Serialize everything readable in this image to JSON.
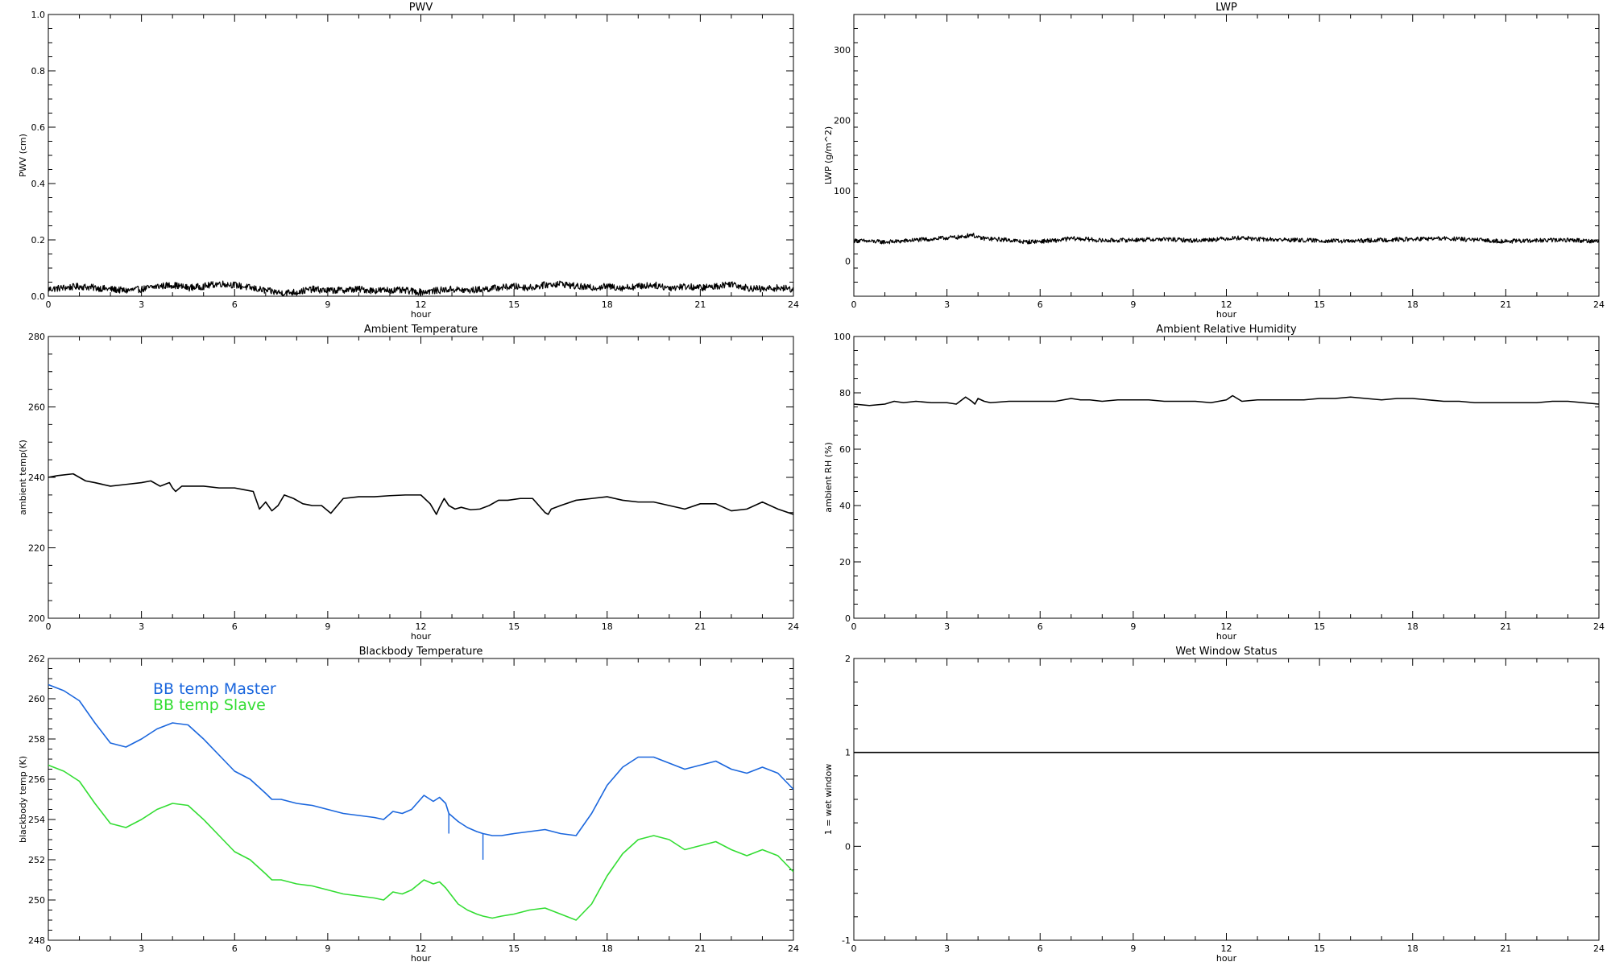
{
  "chart_data": [
    {
      "id": "pwv",
      "type": "line",
      "title": "PWV",
      "xlabel": "hour",
      "ylabel": "PWV (cm)",
      "xlim": [
        0,
        24
      ],
      "ylim": [
        0,
        1
      ],
      "xticks": [
        "0",
        "3",
        "6",
        "9",
        "12",
        "15",
        "18",
        "21",
        "24"
      ],
      "yticks": [
        "0.0",
        "0.2",
        "0.4",
        "0.6",
        "0.8",
        "1.0"
      ],
      "grid": false,
      "series": [
        {
          "color": "#000000",
          "noise": 0.012,
          "x": [
            0,
            0.5,
            1,
            1.5,
            2,
            2.5,
            3,
            3.5,
            4,
            4.5,
            5,
            5.5,
            6,
            6.5,
            7,
            7.5,
            8,
            8.5,
            9,
            9.5,
            10,
            10.5,
            11,
            11.5,
            12,
            12.5,
            13,
            13.5,
            14,
            14.5,
            15,
            15.5,
            16,
            16.5,
            17,
            17.5,
            18,
            18.5,
            19,
            19.5,
            20,
            20.5,
            21,
            21.5,
            22,
            22.5,
            23,
            23.5,
            24
          ],
          "y": [
            0.025,
            0.03,
            0.035,
            0.03,
            0.025,
            0.02,
            0.025,
            0.035,
            0.04,
            0.03,
            0.035,
            0.045,
            0.04,
            0.03,
            0.02,
            0.012,
            0.015,
            0.025,
            0.02,
            0.022,
            0.025,
            0.02,
            0.022,
            0.02,
            0.015,
            0.02,
            0.025,
            0.02,
            0.025,
            0.03,
            0.035,
            0.03,
            0.04,
            0.045,
            0.035,
            0.03,
            0.035,
            0.03,
            0.035,
            0.04,
            0.03,
            0.035,
            0.03,
            0.035,
            0.045,
            0.03,
            0.025,
            0.03,
            0.025
          ]
        }
      ]
    },
    {
      "id": "lwp",
      "type": "line",
      "title": "LWP",
      "xlabel": "hour",
      "ylabel": "LWP (g/m^2)",
      "xlim": [
        0,
        24
      ],
      "ylim": [
        -50,
        350
      ],
      "xticks": [
        "0",
        "3",
        "6",
        "9",
        "12",
        "15",
        "18",
        "21",
        "24"
      ],
      "yticks": [
        "0",
        "100",
        "200",
        "300"
      ],
      "grid": false,
      "series": [
        {
          "color": "#000000",
          "noise": 3,
          "x": [
            0,
            0.5,
            1,
            1.5,
            2,
            2.5,
            3,
            3.5,
            3.8,
            4,
            4.5,
            5,
            5.5,
            6,
            6.5,
            7,
            7.5,
            8,
            9,
            10,
            11,
            12,
            12.5,
            13,
            14,
            15,
            16,
            17,
            18,
            19,
            20,
            21,
            22,
            23,
            24
          ],
          "y": [
            29,
            28,
            27,
            28,
            30,
            31,
            33,
            34,
            38,
            33,
            31,
            30,
            27,
            28,
            29,
            32,
            31,
            29,
            30,
            31,
            29,
            32,
            33,
            31,
            30,
            29,
            28,
            30,
            31,
            32,
            30,
            28,
            29,
            30,
            28
          ]
        }
      ]
    },
    {
      "id": "ambient-temp",
      "type": "line",
      "title": "Ambient Temperature",
      "xlabel": "hour",
      "ylabel": "ambient temp(K)",
      "xlim": [
        0,
        24
      ],
      "ylim": [
        200,
        280
      ],
      "xticks": [
        "0",
        "3",
        "6",
        "9",
        "12",
        "15",
        "18",
        "21",
        "24"
      ],
      "yticks": [
        "200",
        "220",
        "240",
        "260",
        "280"
      ],
      "grid": false,
      "series": [
        {
          "color": "#000000",
          "x": [
            0,
            0.3,
            0.8,
            1.2,
            1.5,
            2,
            2.5,
            3,
            3.3,
            3.6,
            3.9,
            4.0,
            4.1,
            4.3,
            4.6,
            5,
            5.5,
            6,
            6.3,
            6.6,
            6.8,
            7.0,
            7.2,
            7.4,
            7.6,
            7.9,
            8.2,
            8.5,
            8.8,
            9.1,
            9.5,
            10,
            10.5,
            11,
            11.5,
            12,
            12.3,
            12.5,
            12.6,
            12.75,
            12.9,
            13.1,
            13.3,
            13.6,
            13.9,
            14.2,
            14.5,
            14.8,
            15.2,
            15.6,
            16.0,
            16.1,
            16.2,
            16.5,
            17,
            17.5,
            18,
            18.5,
            19,
            19.5,
            20,
            20.5,
            21,
            21.5,
            22,
            22.5,
            23,
            23.5,
            24
          ],
          "y": [
            240,
            240.5,
            241,
            239,
            238.5,
            237.5,
            238,
            238.5,
            239,
            237.5,
            238.5,
            237,
            236,
            237.5,
            237.5,
            237.5,
            237,
            237,
            236.5,
            236,
            231,
            233,
            230.5,
            232,
            235,
            234,
            232.5,
            232,
            232,
            229.8,
            234,
            234.5,
            234.5,
            234.8,
            235,
            235,
            232.5,
            229.5,
            231.5,
            234,
            232,
            231,
            231.5,
            230.8,
            231,
            232,
            233.5,
            233.5,
            234,
            234,
            230,
            229.5,
            231,
            232,
            233.5,
            234,
            234.5,
            233.5,
            233,
            233,
            232,
            231,
            232.5,
            232.5,
            230.5,
            231,
            233,
            231,
            229.5
          ]
        }
      ]
    },
    {
      "id": "ambient-rh",
      "type": "line",
      "title": "Ambient Relative Humidity",
      "xlabel": "hour",
      "ylabel": "ambient RH (%)",
      "xlim": [
        0,
        24
      ],
      "ylim": [
        0,
        100
      ],
      "xticks": [
        "0",
        "3",
        "6",
        "9",
        "12",
        "15",
        "18",
        "21",
        "24"
      ],
      "yticks": [
        "0",
        "20",
        "40",
        "60",
        "80",
        "100"
      ],
      "grid": false,
      "series": [
        {
          "color": "#000000",
          "x": [
            0,
            0.5,
            1,
            1.3,
            1.6,
            2,
            2.5,
            3,
            3.3,
            3.6,
            3.8,
            3.9,
            4.0,
            4.2,
            4.4,
            5,
            5.5,
            6,
            6.5,
            7,
            7.3,
            7.6,
            8,
            8.5,
            9,
            9.5,
            10,
            10.5,
            11,
            11.5,
            12,
            12.2,
            12.5,
            13,
            13.5,
            14,
            14.5,
            15,
            15.5,
            16,
            16.5,
            17,
            17.5,
            18,
            18.5,
            19,
            19.5,
            20,
            20.5,
            21,
            21.5,
            22,
            22.5,
            23,
            23.5,
            24
          ],
          "y": [
            76,
            75.5,
            76,
            77,
            76.5,
            77,
            76.5,
            76.5,
            76,
            78.5,
            77,
            76,
            78,
            77,
            76.5,
            77,
            77,
            77,
            77,
            78,
            77.5,
            77.5,
            77,
            77.5,
            77.5,
            77.5,
            77,
            77,
            77,
            76.5,
            77.5,
            79,
            77,
            77.5,
            77.5,
            77.5,
            77.5,
            78,
            78,
            78.5,
            78,
            77.5,
            78,
            78,
            77.5,
            77,
            77,
            76.5,
            76.5,
            76.5,
            76.5,
            76.5,
            77,
            77,
            76.5,
            76
          ]
        }
      ]
    },
    {
      "id": "blackbody-temp",
      "type": "line",
      "title": "Blackbody Temperature",
      "xlabel": "hour",
      "ylabel": "blackbody temp (K)",
      "xlim": [
        0,
        24
      ],
      "ylim": [
        248,
        262
      ],
      "xticks": [
        "0",
        "3",
        "6",
        "9",
        "12",
        "15",
        "18",
        "21",
        "24"
      ],
      "yticks": [
        "248",
        "250",
        "252",
        "254",
        "256",
        "258",
        "260",
        "262"
      ],
      "grid": false,
      "legend_position": "top-left",
      "series": [
        {
          "name": "BB temp Master",
          "color": "#1a66dd",
          "x": [
            0,
            0.5,
            1,
            1.5,
            2,
            2.5,
            3,
            3.5,
            4,
            4.5,
            5,
            5.5,
            6,
            6.5,
            7,
            7.2,
            7.5,
            8,
            8.5,
            9,
            9.5,
            10,
            10.5,
            10.8,
            11.1,
            11.4,
            11.7,
            12.1,
            12.4,
            12.6,
            12.8,
            12.9,
            13.2,
            13.5,
            13.8,
            14,
            14.3,
            14.6,
            15,
            15.5,
            16,
            16.5,
            17,
            17.5,
            18,
            18.5,
            19,
            19.5,
            20,
            20.5,
            21,
            21.5,
            22,
            22.5,
            23,
            23.5,
            24
          ],
          "y": [
            260.7,
            260.4,
            259.9,
            258.8,
            257.8,
            257.6,
            258,
            258.5,
            258.8,
            258.7,
            258,
            257.2,
            256.4,
            256,
            255.3,
            255.0,
            255.0,
            254.8,
            254.7,
            254.5,
            254.3,
            254.2,
            254.1,
            254.0,
            254.4,
            254.3,
            254.5,
            255.2,
            254.9,
            255.1,
            254.8,
            254.3,
            253.9,
            253.6,
            253.4,
            253.3,
            253.2,
            253.2,
            253.3,
            253.4,
            253.5,
            253.3,
            253.2,
            254.3,
            255.7,
            256.6,
            257.1,
            257.1,
            256.8,
            256.5,
            256.7,
            256.9,
            256.5,
            256.3,
            256.6,
            256.3,
            255.5
          ],
          "spikes": [
            [
              12.9,
              253.3
            ],
            [
              14.0,
              252.0
            ]
          ]
        },
        {
          "name": "BB temp Slave",
          "color": "#33dd33",
          "x": [
            0,
            0.5,
            1,
            1.5,
            2,
            2.5,
            3,
            3.5,
            4,
            4.5,
            5,
            5.5,
            6,
            6.5,
            7,
            7.2,
            7.5,
            8,
            8.5,
            9,
            9.5,
            10,
            10.5,
            10.8,
            11.1,
            11.4,
            11.7,
            12.1,
            12.4,
            12.6,
            12.8,
            13.2,
            13.5,
            13.8,
            14,
            14.3,
            14.6,
            15,
            15.5,
            16,
            16.5,
            17,
            17.5,
            18,
            18.5,
            19,
            19.5,
            20,
            20.5,
            21,
            21.5,
            22,
            22.5,
            23,
            23.5,
            24
          ],
          "y": [
            256.7,
            256.4,
            255.9,
            254.8,
            253.8,
            253.6,
            254,
            254.5,
            254.8,
            254.7,
            254,
            253.2,
            252.4,
            252,
            251.3,
            251.0,
            251.0,
            250.8,
            250.7,
            250.5,
            250.3,
            250.2,
            250.1,
            250.0,
            250.4,
            250.3,
            250.5,
            251.0,
            250.8,
            250.9,
            250.6,
            249.8,
            249.5,
            249.3,
            249.2,
            249.1,
            249.2,
            249.3,
            249.5,
            249.6,
            249.3,
            249.0,
            249.8,
            251.2,
            252.3,
            253.0,
            253.2,
            253.0,
            252.5,
            252.7,
            252.9,
            252.5,
            252.2,
            252.5,
            252.2,
            251.4
          ]
        }
      ]
    },
    {
      "id": "wet-window",
      "type": "line",
      "title": "Wet Window Status",
      "xlabel": "hour",
      "ylabel": "1 = wet window",
      "xlim": [
        0,
        24
      ],
      "ylim": [
        -1,
        2
      ],
      "xticks": [
        "0",
        "3",
        "6",
        "9",
        "12",
        "15",
        "18",
        "21",
        "24"
      ],
      "yticks": [
        "-1",
        "0",
        "1",
        "2"
      ],
      "grid": false,
      "series": [
        {
          "color": "#000000",
          "x": [
            0,
            24
          ],
          "y": [
            1,
            1
          ]
        }
      ]
    }
  ]
}
